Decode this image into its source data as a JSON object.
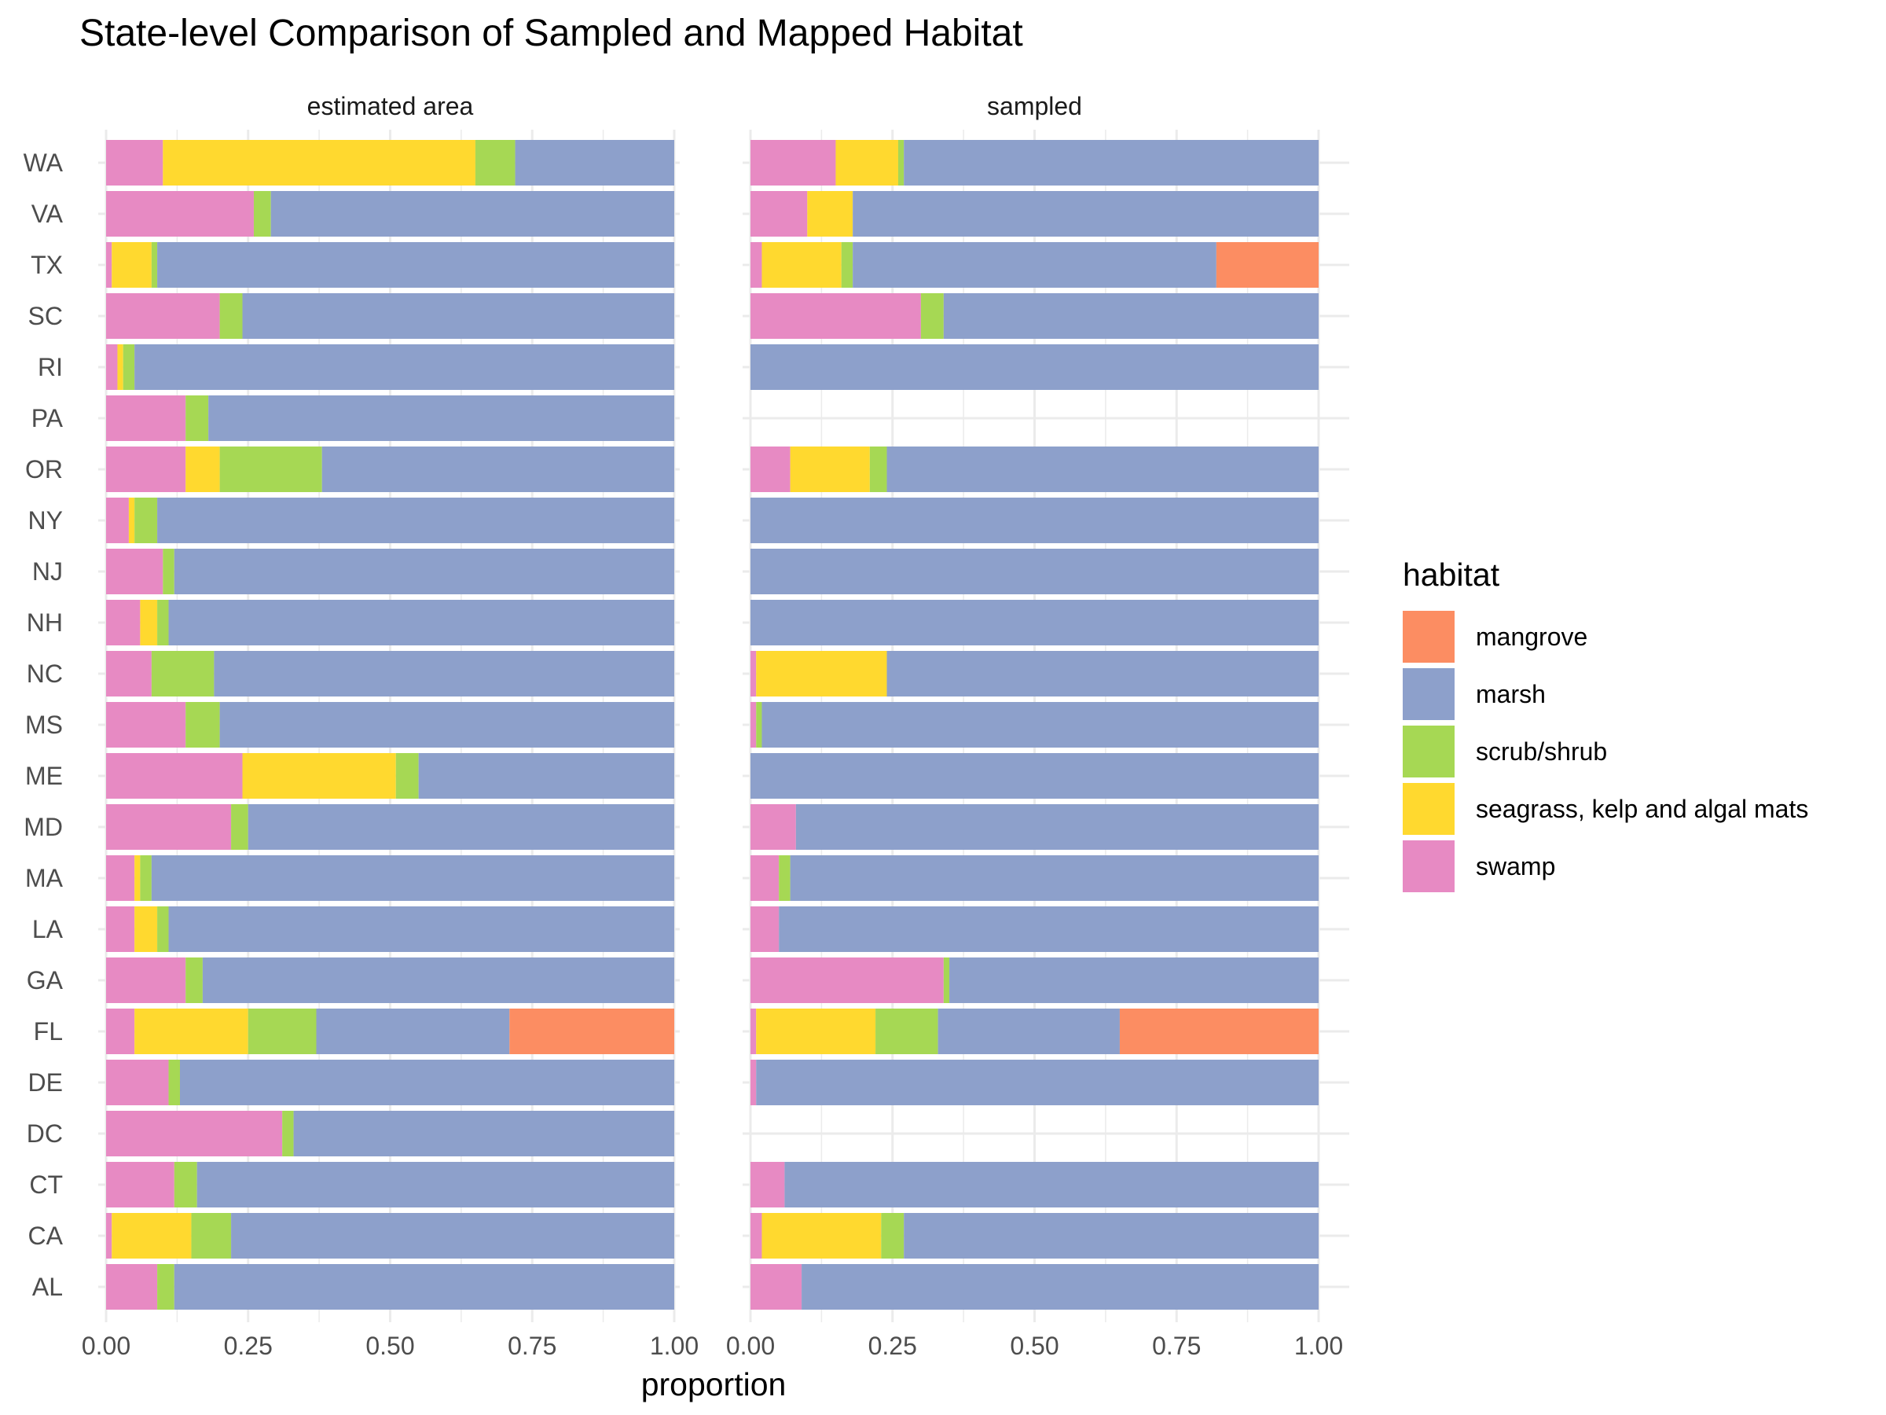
{
  "chart_data": {
    "type": "bar",
    "orientation": "horizontal",
    "stacked": true,
    "title": "State-level Comparison of Sampled and Mapped Habitat",
    "xlabel": "proportion",
    "ylabel": "",
    "xlim": [
      0,
      1
    ],
    "x_ticks": [
      "0.00",
      "0.25",
      "0.50",
      "0.75",
      "1.00"
    ],
    "grid": true,
    "legend": {
      "title": "habitat",
      "position": "right",
      "entries": [
        {
          "name": "mangrove",
          "color": "#FC8D62"
        },
        {
          "name": "marsh",
          "color": "#8DA0CB"
        },
        {
          "name": "scrub/shrub",
          "color": "#A6D854"
        },
        {
          "name": "seagrass, kelp and algal mats",
          "color": "#FFD92F"
        },
        {
          "name": "swamp",
          "color": "#E78AC3"
        }
      ]
    },
    "stack_order": [
      "swamp",
      "seagrass, kelp and algal mats",
      "scrub/shrub",
      "marsh",
      "mangrove"
    ],
    "categories": [
      "WA",
      "VA",
      "TX",
      "SC",
      "RI",
      "PA",
      "OR",
      "NY",
      "NJ",
      "NH",
      "NC",
      "MS",
      "ME",
      "MD",
      "MA",
      "LA",
      "GA",
      "FL",
      "DE",
      "DC",
      "CT",
      "CA",
      "AL"
    ],
    "facets": [
      {
        "label": "estimated area",
        "series": [
          {
            "name": "swamp",
            "values": [
              0.1,
              0.26,
              0.01,
              0.2,
              0.02,
              0.14,
              0.14,
              0.04,
              0.1,
              0.06,
              0.08,
              0.14,
              0.24,
              0.22,
              0.05,
              0.05,
              0.14,
              0.05,
              0.11,
              0.31,
              0.12,
              0.01,
              0.09
            ]
          },
          {
            "name": "seagrass, kelp and algal mats",
            "values": [
              0.55,
              0.0,
              0.07,
              0.0,
              0.01,
              0.0,
              0.06,
              0.01,
              0.0,
              0.03,
              0.0,
              0.0,
              0.27,
              0.0,
              0.01,
              0.04,
              0.0,
              0.2,
              0.0,
              0.0,
              0.0,
              0.14,
              0.0
            ]
          },
          {
            "name": "scrub/shrub",
            "values": [
              0.07,
              0.03,
              0.01,
              0.04,
              0.02,
              0.04,
              0.18,
              0.04,
              0.02,
              0.02,
              0.11,
              0.06,
              0.04,
              0.03,
              0.02,
              0.02,
              0.03,
              0.12,
              0.02,
              0.02,
              0.04,
              0.07,
              0.03
            ]
          },
          {
            "name": "marsh",
            "values": [
              0.28,
              0.71,
              0.91,
              0.76,
              0.95,
              0.82,
              0.62,
              0.91,
              0.88,
              0.89,
              0.81,
              0.8,
              0.45,
              0.75,
              0.92,
              0.89,
              0.83,
              0.34,
              0.87,
              0.67,
              0.84,
              0.78,
              0.88
            ]
          },
          {
            "name": "mangrove",
            "values": [
              0,
              0,
              0,
              0,
              0,
              0,
              0,
              0,
              0,
              0,
              0,
              0,
              0,
              0,
              0,
              0,
              0,
              0.29,
              0,
              0,
              0,
              0,
              0
            ]
          }
        ]
      },
      {
        "label": "sampled",
        "series": [
          {
            "name": "swamp",
            "values": [
              0.15,
              0.1,
              0.02,
              0.3,
              0.0,
              null,
              0.07,
              0.0,
              0.0,
              0.0,
              0.01,
              0.01,
              0.0,
              0.08,
              0.05,
              0.05,
              0.34,
              0.01,
              0.01,
              null,
              0.06,
              0.02,
              0.09
            ]
          },
          {
            "name": "seagrass, kelp and algal mats",
            "values": [
              0.11,
              0.08,
              0.14,
              0.0,
              0.0,
              null,
              0.14,
              0.0,
              0.0,
              0.0,
              0.23,
              0.0,
              0.0,
              0.0,
              0.0,
              0.0,
              0.0,
              0.21,
              0.0,
              null,
              0.0,
              0.21,
              0.0
            ]
          },
          {
            "name": "scrub/shrub",
            "values": [
              0.01,
              0.0,
              0.02,
              0.04,
              0.0,
              null,
              0.03,
              0.0,
              0.0,
              0.0,
              0.0,
              0.01,
              0.0,
              0.0,
              0.02,
              0.0,
              0.01,
              0.11,
              0.0,
              null,
              0.0,
              0.04,
              0.0
            ]
          },
          {
            "name": "marsh",
            "values": [
              0.73,
              0.82,
              0.64,
              0.66,
              1.0,
              null,
              0.76,
              1.0,
              1.0,
              1.0,
              0.76,
              0.98,
              1.0,
              0.92,
              0.93,
              0.95,
              0.65,
              0.32,
              0.99,
              null,
              0.94,
              0.73,
              0.91
            ]
          },
          {
            "name": "mangrove",
            "values": [
              0,
              0,
              0.18,
              0,
              0,
              null,
              0,
              0,
              0,
              0,
              0,
              0,
              0,
              0,
              0,
              0,
              0,
              0.35,
              0,
              null,
              0,
              0,
              0
            ]
          }
        ]
      }
    ]
  }
}
